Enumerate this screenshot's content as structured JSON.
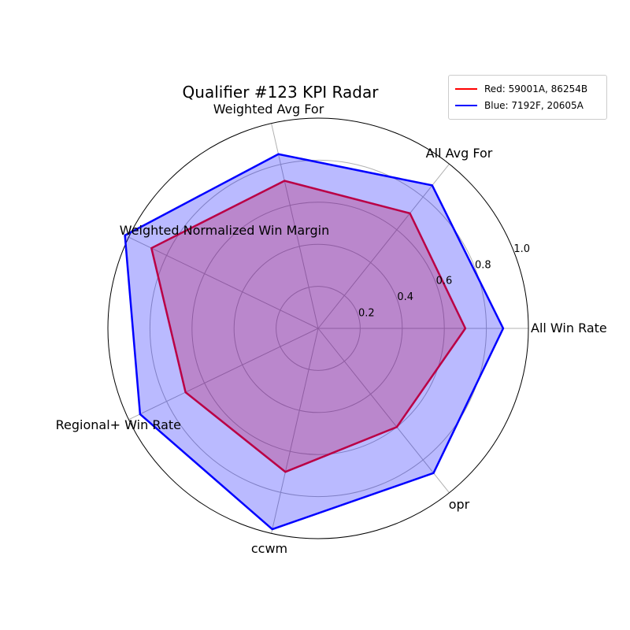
{
  "chart_data": {
    "type": "radar",
    "title": "Qualifier #123 KPI Radar",
    "axes": [
      "All Win Rate",
      "All Avg For",
      "Weighted Avg For",
      "Weighted Normalized Win Margin",
      "Regional+ Win Rate",
      "ccwm",
      "opr"
    ],
    "radial_ticks": [
      "0.2",
      "0.4",
      "0.6",
      "0.8",
      "1.0"
    ],
    "radial_tick_values": [
      0.2,
      0.4,
      0.6,
      0.8,
      1.0
    ],
    "rlim": [
      0,
      1.0
    ],
    "grid": true,
    "legend_position": "top-right",
    "series": [
      {
        "name": "Red: 59001A, 86254B",
        "values": [
          0.7,
          0.7,
          0.72,
          0.88,
          0.7,
          0.7,
          0.6
        ],
        "color": "#ff0000",
        "fill": false
      },
      {
        "name": "Blue: 7192F, 20605A",
        "values": [
          0.88,
          0.87,
          0.85,
          1.02,
          0.94,
          0.98,
          0.88
        ],
        "color": "#0000ff",
        "fill": true,
        "fill_color": "#0000ff"
      }
    ]
  }
}
